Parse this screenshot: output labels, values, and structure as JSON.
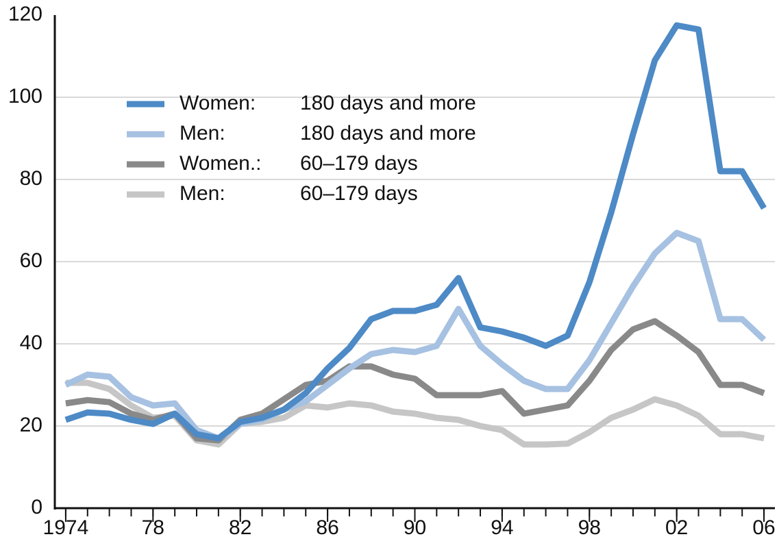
{
  "chart_data": {
    "type": "line",
    "x": [
      1974,
      1975,
      1976,
      1977,
      1978,
      1979,
      1980,
      1981,
      1982,
      1983,
      1984,
      1985,
      1986,
      1987,
      1988,
      1989,
      1990,
      1991,
      1992,
      1993,
      1994,
      1995,
      1996,
      1997,
      1998,
      1999,
      2000,
      2001,
      2002,
      2003,
      2004,
      2005,
      2006
    ],
    "series": [
      {
        "name": "Women:",
        "period": "180 days and more",
        "color": "#4d8ac6",
        "values": [
          21.5,
          23.3,
          23,
          21.5,
          20.5,
          23,
          18,
          17,
          21,
          22,
          24,
          28,
          34,
          39,
          46,
          48,
          48,
          49.5,
          56,
          44,
          43,
          41.5,
          39.5,
          42,
          55,
          72,
          91,
          109,
          117.5,
          116.5,
          82,
          82,
          73
        ]
      },
      {
        "name": "Men:",
        "period": "180 days and more",
        "color": "#a6c1e1",
        "values": [
          30,
          32.5,
          32,
          27,
          25,
          25.5,
          19,
          17,
          20.5,
          21.5,
          24,
          26,
          30,
          34,
          37.5,
          38.5,
          38,
          39.5,
          48.5,
          39.5,
          35,
          31,
          29,
          29,
          36,
          45,
          54,
          62,
          67,
          65,
          46,
          46,
          41
        ]
      },
      {
        "name": "Women.:",
        "period": "60–179 days",
        "color": "#898989",
        "values": [
          25.5,
          26.3,
          25.8,
          23,
          21.5,
          23,
          17,
          16.5,
          21.5,
          23,
          26.5,
          30,
          31,
          34.5,
          34.5,
          32.5,
          31.5,
          27.5,
          27.5,
          27.5,
          28.5,
          23,
          24,
          25,
          31,
          38.5,
          43.5,
          45.5,
          42,
          38,
          30,
          30,
          28
        ]
      },
      {
        "name": "Men:",
        "period": "60–179 days",
        "color": "#c6c6c6",
        "values": [
          30.5,
          30.5,
          29,
          25,
          22,
          22.5,
          16.5,
          15.5,
          20.5,
          21,
          22,
          25,
          24.5,
          25.5,
          25,
          23.5,
          23,
          22,
          21.5,
          20,
          19,
          15.5,
          15.5,
          15.7,
          18.5,
          22,
          24,
          26.5,
          25,
          22.5,
          18,
          18,
          17
        ]
      }
    ],
    "xlim": [
      1973.5,
      2006.5
    ],
    "xticks": [
      1974,
      {
        "value": 1978,
        "label": "78"
      },
      {
        "value": 1982,
        "label": "82"
      },
      {
        "value": 1986,
        "label": "86"
      },
      {
        "value": 1990,
        "label": "90"
      },
      {
        "value": 1994,
        "label": "94"
      },
      {
        "value": 1998,
        "label": "98"
      },
      {
        "value": 2002,
        "label": "02"
      },
      {
        "value": 2006,
        "label": "06"
      }
    ],
    "ylim": [
      0,
      120
    ],
    "yticks": [
      0,
      20,
      40,
      60,
      80,
      100,
      120
    ],
    "grid": true,
    "legend": "upper left"
  }
}
